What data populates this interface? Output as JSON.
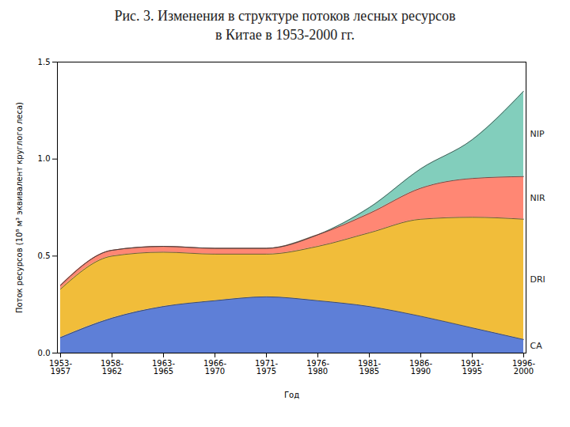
{
  "chart_data": {
    "type": "area",
    "stacked": true,
    "title": "Рис. 3. Изменения в структуре потоков лесных ресурсов",
    "subtitle": "в Китае в 1953-2000 гг.",
    "xlabel": "Год",
    "ylabel": "Поток ресурсов (10⁸ м³ эквивалент круглого леса)",
    "categories": [
      "1953-\n1957",
      "1958-\n1962",
      "1963-\n1965",
      "1966-\n1970",
      "1971-\n1975",
      "1976-\n1980",
      "1981-\n1985",
      "1986-\n1990",
      "1991-\n1995",
      "1996-\n2000"
    ],
    "series": [
      {
        "name": "CA",
        "values": [
          0.08,
          0.18,
          0.24,
          0.27,
          0.29,
          0.27,
          0.24,
          0.19,
          0.13,
          0.07
        ]
      },
      {
        "name": "DRI",
        "values": [
          0.25,
          0.32,
          0.28,
          0.24,
          0.22,
          0.28,
          0.38,
          0.5,
          0.57,
          0.62
        ]
      },
      {
        "name": "NIR",
        "values": [
          0.02,
          0.03,
          0.03,
          0.03,
          0.03,
          0.06,
          0.1,
          0.16,
          0.2,
          0.22
        ]
      },
      {
        "name": "NIP",
        "values": [
          0.0,
          0.0,
          0.0,
          0.0,
          0.0,
          0.0,
          0.03,
          0.1,
          0.2,
          0.44
        ]
      }
    ],
    "ylim": [
      0.0,
      1.5
    ],
    "yticks": [
      {
        "value": 0,
        "label": "0.0"
      },
      0.5,
      {
        "value": 1,
        "label": "1.0"
      },
      1.5
    ]
  }
}
